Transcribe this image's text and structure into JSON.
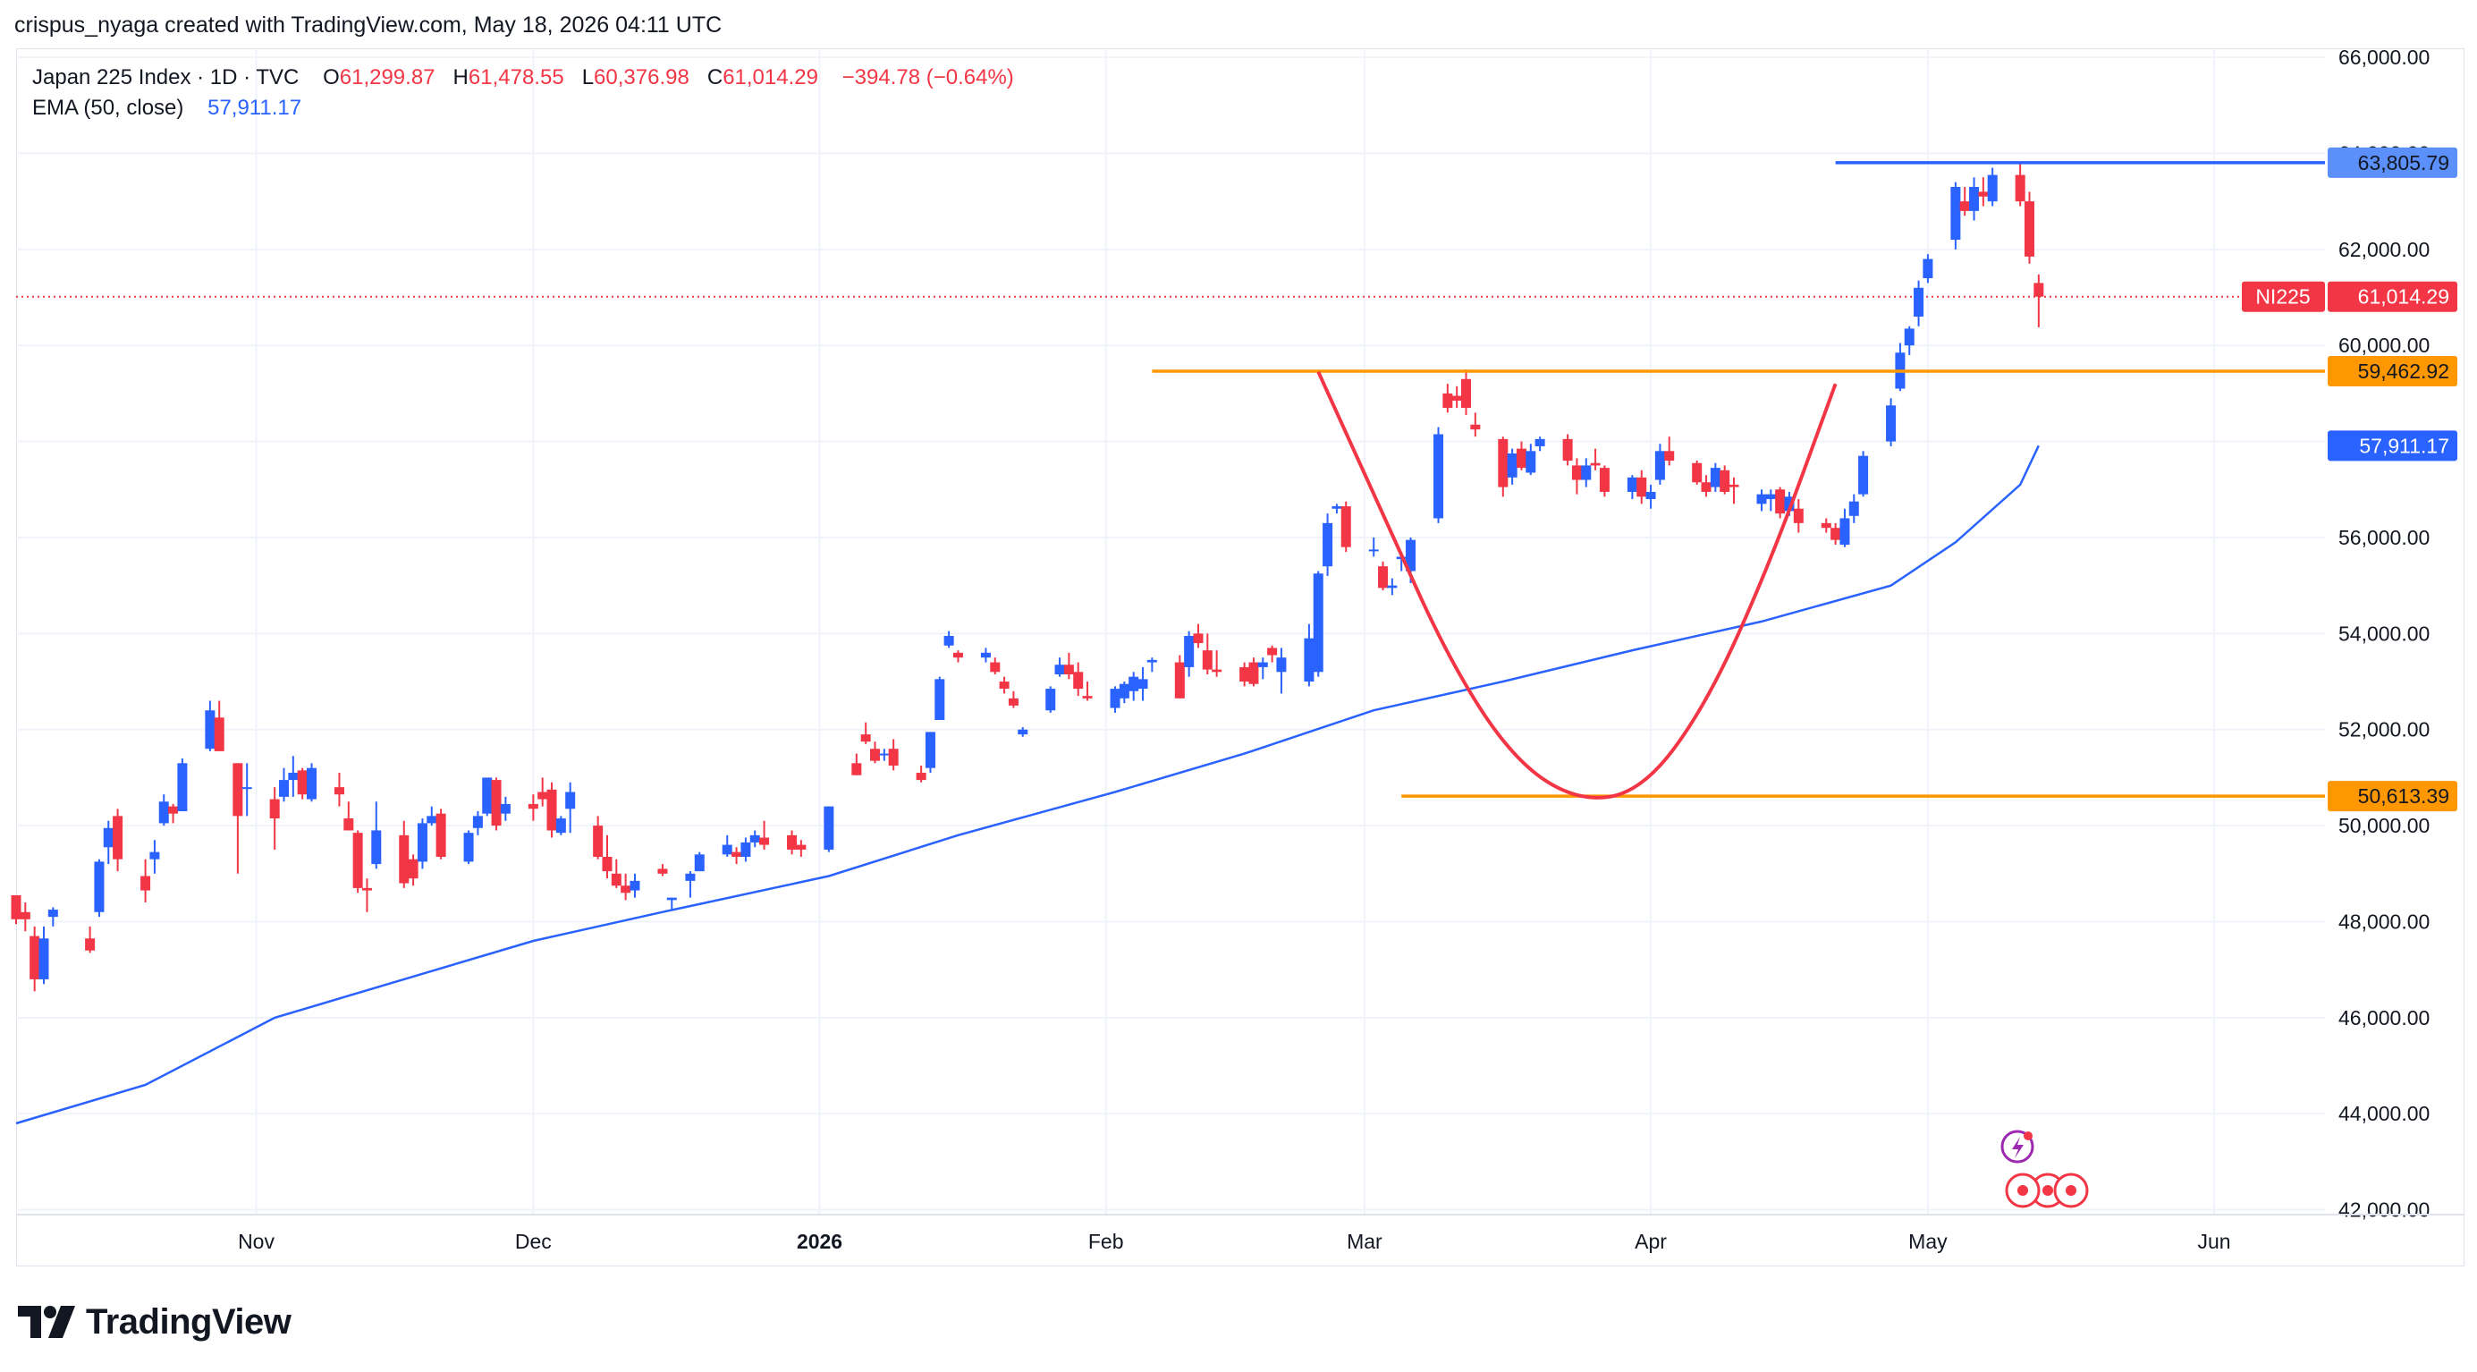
{
  "credit": "crispus_nyaga created with TradingView.com, May 18, 2026 04:11 UTC",
  "legend": {
    "symbol": "Japan 225 Index · 1D · TVC",
    "o_label": "O",
    "o_value": "61,299.87",
    "h_label": "H",
    "h_value": "61,478.55",
    "l_label": "L",
    "l_value": "60,376.98",
    "c_label": "C",
    "c_value": "61,014.29",
    "change": "−394.78 (−0.64%)",
    "ema_label": "EMA (50, close)",
    "ema_value": "57,911.17"
  },
  "price_tags": {
    "resistance_high": "63,805.79",
    "symbol_tag": "NI225",
    "last_price": "61,014.29",
    "resistance_mid": "59,462.92",
    "ema": "57,911.17",
    "support": "50,613.39"
  },
  "brand": "TradingView",
  "colors": {
    "up": "#2962ff",
    "down": "#f23645",
    "ema": "#2962ff",
    "level_orange": "#ff9800",
    "level_blue": "#2962ff",
    "cup_curve": "#f23645",
    "grid": "#f0f3fa",
    "last_price_tag": "#f23645",
    "ema_tag": "#2962ff",
    "level_tag_orange": "#ff9800",
    "level_tag_blue": "#5b8ff9"
  },
  "chart_data": {
    "type": "candlestick",
    "title": "Japan 225 Index · 1D · TVC",
    "y_ticks": [
      42000,
      44000,
      46000,
      48000,
      50000,
      52000,
      54000,
      56000,
      58000,
      60000,
      62000,
      64000,
      66000
    ],
    "y_tick_labels": [
      "42,000.00",
      "44,000.00",
      "46,000.00",
      "48,000.00",
      "50,000.00",
      "52,000.00",
      "54,000.00",
      "56,000.00",
      "58,000.00",
      "60,000.00",
      "62,000.00",
      "64,000.00",
      "66,000.00"
    ],
    "ylim": [
      41900,
      66150
    ],
    "x_range": [
      "2025-10-06",
      "2026-06-13"
    ],
    "x_ticks": [
      {
        "date": "2025-11-01",
        "label": "Nov",
        "bold": false
      },
      {
        "date": "2025-12-01",
        "label": "Dec",
        "bold": false
      },
      {
        "date": "2026-01-01",
        "label": "2026",
        "bold": true
      },
      {
        "date": "2026-02-01",
        "label": "Feb",
        "bold": false
      },
      {
        "date": "2026-03-01",
        "label": "Mar",
        "bold": false
      },
      {
        "date": "2026-04-01",
        "label": "Apr",
        "bold": false
      },
      {
        "date": "2026-05-01",
        "label": "May",
        "bold": false
      },
      {
        "date": "2026-06-01",
        "label": "Jun",
        "bold": false
      }
    ],
    "candles": [
      [
        "2025-10-06",
        48550,
        48550,
        47950,
        48050
      ],
      [
        "2025-10-07",
        48200,
        48400,
        47800,
        48050
      ],
      [
        "2025-10-08",
        47700,
        47900,
        46550,
        46800
      ],
      [
        "2025-10-09",
        46800,
        47900,
        46700,
        47650
      ],
      [
        "2025-10-10",
        48100,
        48300,
        47900,
        48250
      ],
      [
        "2025-10-14",
        47650,
        47900,
        47350,
        47400
      ],
      [
        "2025-10-15",
        48200,
        49300,
        48100,
        49250
      ],
      [
        "2025-10-16",
        49550,
        50100,
        49200,
        49950
      ],
      [
        "2025-10-17",
        50200,
        50350,
        49050,
        49300
      ],
      [
        "2025-10-20",
        48950,
        49300,
        48400,
        48650
      ],
      [
        "2025-10-21",
        49300,
        49700,
        49000,
        49450
      ],
      [
        "2025-10-22",
        50050,
        50650,
        50000,
        50500
      ],
      [
        "2025-10-23",
        50400,
        50450,
        50050,
        50250
      ],
      [
        "2025-10-24",
        50300,
        51400,
        50300,
        51300
      ],
      [
        "2025-10-27",
        51600,
        52600,
        51550,
        52400
      ],
      [
        "2025-10-28",
        52250,
        52600,
        51550,
        51550
      ],
      [
        "2025-10-30",
        51300,
        51300,
        49000,
        50200
      ],
      [
        "2025-10-31",
        50800,
        51300,
        50200,
        50800
      ],
      [
        "2025-11-03",
        50550,
        50800,
        49500,
        50150
      ],
      [
        "2025-11-04",
        50600,
        51200,
        50500,
        50950
      ],
      [
        "2025-11-05",
        50950,
        51450,
        50600,
        51100
      ],
      [
        "2025-11-06",
        51150,
        51200,
        50550,
        50650
      ],
      [
        "2025-11-07",
        50550,
        51300,
        50500,
        51200
      ],
      [
        "2025-11-10",
        50800,
        51100,
        50400,
        50650
      ],
      [
        "2025-11-11",
        50150,
        50500,
        49900,
        49900
      ],
      [
        "2025-11-12",
        49850,
        49900,
        48600,
        48700
      ],
      [
        "2025-11-13",
        48700,
        48900,
        48200,
        48650
      ],
      [
        "2025-11-14",
        49200,
        50500,
        49100,
        49900
      ],
      [
        "2025-11-17",
        49800,
        50100,
        48700,
        48800
      ],
      [
        "2025-11-18",
        49300,
        49400,
        48750,
        48900
      ],
      [
        "2025-11-19",
        49250,
        50150,
        49100,
        50050
      ],
      [
        "2025-11-20",
        50050,
        50400,
        50000,
        50200
      ],
      [
        "2025-11-21",
        50250,
        50350,
        49300,
        49350
      ],
      [
        "2025-11-24",
        49250,
        49900,
        49200,
        49850
      ],
      [
        "2025-11-25",
        49950,
        50300,
        49800,
        50200
      ],
      [
        "2025-11-26",
        50250,
        51000,
        50200,
        51000
      ],
      [
        "2025-11-27",
        50950,
        51000,
        49900,
        50000
      ],
      [
        "2025-11-28",
        50250,
        50600,
        50100,
        50450
      ],
      [
        "2025-12-01",
        50450,
        50650,
        50100,
        50350
      ],
      [
        "2025-12-02",
        50700,
        51000,
        50400,
        50550
      ],
      [
        "2025-12-03",
        50750,
        50900,
        49750,
        49900
      ],
      [
        "2025-12-04",
        49850,
        50200,
        49800,
        50150
      ],
      [
        "2025-12-05",
        50350,
        50900,
        49850,
        50700
      ],
      [
        "2025-12-08",
        50000,
        50200,
        49300,
        49350
      ],
      [
        "2025-12-09",
        49350,
        49800,
        48900,
        49050
      ],
      [
        "2025-12-10",
        49000,
        49300,
        48700,
        48750
      ],
      [
        "2025-12-11",
        48750,
        49000,
        48450,
        48600
      ],
      [
        "2025-12-12",
        48650,
        49000,
        48500,
        48850
      ],
      [
        "2025-12-15",
        49100,
        49200,
        48950,
        49000
      ],
      [
        "2025-12-16",
        48450,
        48500,
        48250,
        48500
      ],
      [
        "2025-12-18",
        48850,
        49050,
        48500,
        49000
      ],
      [
        "2025-12-19",
        49050,
        49450,
        49050,
        49400
      ],
      [
        "2025-12-22",
        49400,
        49800,
        49350,
        49600
      ],
      [
        "2025-12-23",
        49450,
        49550,
        49200,
        49350
      ],
      [
        "2025-12-24",
        49350,
        49750,
        49250,
        49650
      ],
      [
        "2025-12-25",
        49650,
        49900,
        49550,
        49800
      ],
      [
        "2025-12-26",
        49750,
        50100,
        49500,
        49600
      ],
      [
        "2025-12-29",
        49800,
        49900,
        49400,
        49500
      ],
      [
        "2025-12-30",
        49600,
        49700,
        49350,
        49500
      ],
      [
        "2026-01-02",
        49500,
        50400,
        49450,
        50400
      ],
      [
        "2026-01-05",
        51300,
        51500,
        51050,
        51050
      ],
      [
        "2026-01-06",
        51900,
        52150,
        51700,
        51750
      ],
      [
        "2026-01-07",
        51600,
        51750,
        51300,
        51350
      ],
      [
        "2026-01-08",
        51500,
        51600,
        51350,
        51500
      ],
      [
        "2026-01-09",
        51600,
        51800,
        51150,
        51250
      ],
      [
        "2026-01-12",
        51100,
        51250,
        50900,
        50950
      ],
      [
        "2026-01-13",
        51200,
        51950,
        51100,
        51950
      ],
      [
        "2026-01-14",
        52200,
        53100,
        52200,
        53050
      ],
      [
        "2026-01-15",
        53750,
        54050,
        53700,
        53950
      ],
      [
        "2026-01-16",
        53600,
        53650,
        53400,
        53500
      ],
      [
        "2026-01-19",
        53500,
        53700,
        53400,
        53600
      ],
      [
        "2026-01-20",
        53400,
        53500,
        53150,
        53200
      ],
      [
        "2026-01-21",
        53000,
        53100,
        52750,
        52850
      ],
      [
        "2026-01-22",
        52650,
        52800,
        52450,
        52500
      ],
      [
        "2026-01-23",
        51900,
        52050,
        51850,
        52000
      ],
      [
        "2026-01-26",
        52400,
        52900,
        52350,
        52850
      ],
      [
        "2026-01-27",
        53150,
        53500,
        53100,
        53350
      ],
      [
        "2026-01-28",
        53350,
        53600,
        53050,
        53150
      ],
      [
        "2026-01-29",
        53200,
        53400,
        52700,
        52850
      ],
      [
        "2026-01-30",
        52700,
        53000,
        52600,
        52650
      ],
      [
        "2026-02-02",
        52450,
        52900,
        52350,
        52850
      ],
      [
        "2026-02-03",
        52650,
        53000,
        52550,
        52950
      ],
      [
        "2026-02-04",
        52800,
        53200,
        52600,
        53100
      ],
      [
        "2026-02-05",
        52850,
        53300,
        52600,
        53050
      ],
      [
        "2026-02-06",
        53400,
        53500,
        53200,
        53450
      ],
      [
        "2026-02-09",
        53400,
        53550,
        52650,
        52650
      ],
      [
        "2026-02-10",
        53300,
        54050,
        53100,
        53950
      ],
      [
        "2026-02-11",
        54000,
        54200,
        53700,
        53800
      ],
      [
        "2026-02-12",
        53650,
        54000,
        53150,
        53250
      ],
      [
        "2026-02-13",
        53250,
        53650,
        53100,
        53200
      ],
      [
        "2026-02-16",
        53300,
        53400,
        52900,
        53000
      ],
      [
        "2026-02-17",
        53400,
        53500,
        52900,
        52950
      ],
      [
        "2026-02-18",
        53300,
        53500,
        53050,
        53400
      ],
      [
        "2026-02-19",
        53700,
        53750,
        53400,
        53550
      ],
      [
        "2026-02-20",
        53200,
        53700,
        52750,
        53500
      ],
      [
        "2026-02-23",
        53000,
        54200,
        52900,
        53900
      ],
      [
        "2026-02-24",
        53200,
        55300,
        53100,
        55250
      ],
      [
        "2026-02-25",
        55400,
        56500,
        55200,
        56300
      ],
      [
        "2026-02-26",
        56600,
        56700,
        56500,
        56650
      ],
      [
        "2026-02-27",
        56650,
        56750,
        55700,
        55800
      ],
      [
        "2026-03-02",
        55750,
        56000,
        55600,
        55750
      ],
      [
        "2026-03-03",
        55400,
        55500,
        54900,
        54950
      ],
      [
        "2026-03-04",
        54950,
        55150,
        54800,
        55000
      ],
      [
        "2026-03-05",
        55550,
        55700,
        55300,
        55600
      ],
      [
        "2026-03-06",
        55300,
        56000,
        55050,
        55950
      ],
      [
        "2026-03-09",
        56400,
        58300,
        56300,
        58150
      ],
      [
        "2026-03-10",
        59000,
        59200,
        58600,
        58700
      ],
      [
        "2026-03-11",
        58950,
        59150,
        58700,
        58850
      ],
      [
        "2026-03-12",
        59300,
        59500,
        58550,
        58700
      ],
      [
        "2026-03-13",
        58350,
        58600,
        58100,
        58250
      ],
      [
        "2026-03-16",
        58050,
        58100,
        56850,
        57050
      ],
      [
        "2026-03-17",
        57250,
        57850,
        57100,
        57750
      ],
      [
        "2026-03-18",
        57850,
        58000,
        57400,
        57450
      ],
      [
        "2026-03-19",
        57350,
        57950,
        57300,
        57800
      ],
      [
        "2026-03-20",
        57900,
        58100,
        57800,
        58050
      ],
      [
        "2026-03-23",
        58050,
        58150,
        57500,
        57600
      ],
      [
        "2026-03-24",
        57500,
        57650,
        56900,
        57200
      ],
      [
        "2026-03-25",
        57200,
        57650,
        57050,
        57500
      ],
      [
        "2026-03-26",
        57550,
        57850,
        57400,
        57500
      ],
      [
        "2026-03-27",
        57450,
        57500,
        56850,
        56950
      ],
      [
        "2026-03-30",
        56950,
        57300,
        56800,
        57250
      ],
      [
        "2026-03-31",
        57250,
        57400,
        56700,
        56850
      ],
      [
        "2026-04-01",
        56800,
        57100,
        56600,
        56950
      ],
      [
        "2026-04-02",
        57200,
        57950,
        57100,
        57800
      ],
      [
        "2026-04-03",
        57800,
        58100,
        57500,
        57600
      ],
      [
        "2026-04-06",
        57550,
        57600,
        57100,
        57150
      ],
      [
        "2026-04-07",
        57150,
        57300,
        56850,
        56950
      ],
      [
        "2026-04-08",
        57050,
        57550,
        56950,
        57450
      ],
      [
        "2026-04-09",
        57400,
        57500,
        56900,
        56950
      ],
      [
        "2026-04-10",
        57100,
        57250,
        56700,
        57050
      ],
      [
        "2026-04-13",
        56700,
        57000,
        56550,
        56900
      ],
      [
        "2026-04-14",
        56800,
        57000,
        56550,
        56900
      ],
      [
        "2026-04-15",
        57000,
        57050,
        56400,
        56500
      ],
      [
        "2026-04-16",
        56550,
        56950,
        56450,
        56850
      ],
      [
        "2026-04-17",
        56600,
        56800,
        56100,
        56300
      ],
      [
        "2026-04-20",
        56300,
        56400,
        56100,
        56200
      ],
      [
        "2026-04-21",
        56200,
        56300,
        55850,
        55950
      ],
      [
        "2026-04-22",
        55850,
        56600,
        55800,
        56400
      ],
      [
        "2026-04-23",
        56450,
        56900,
        56300,
        56750
      ],
      [
        "2026-04-24",
        56900,
        57800,
        56850,
        57700
      ],
      [
        "2026-04-27",
        58000,
        58900,
        57900,
        58750
      ],
      [
        "2026-04-28",
        59100,
        60050,
        59050,
        59850
      ],
      [
        "2026-04-29",
        60000,
        60400,
        59800,
        60350
      ],
      [
        "2026-04-30",
        60600,
        61350,
        60400,
        61200
      ],
      [
        "2026-05-01",
        61400,
        61900,
        61300,
        61800
      ],
      [
        "2026-05-04",
        62200,
        63400,
        62000,
        63300
      ],
      [
        "2026-05-05",
        63000,
        63300,
        62700,
        62800
      ],
      [
        "2026-05-06",
        62800,
        63500,
        62600,
        63300
      ],
      [
        "2026-05-07",
        63200,
        63500,
        62900,
        63100
      ],
      [
        "2026-05-08",
        63000,
        63700,
        62900,
        63550
      ],
      [
        "2026-05-11",
        63550,
        63805,
        62900,
        63000
      ],
      [
        "2026-05-12",
        63000,
        63200,
        61700,
        61850
      ],
      [
        "2026-05-13",
        61299.87,
        61478.55,
        60376.98,
        61014.29
      ]
    ],
    "ema_series_name": "EMA (50, close)",
    "ema_points": [
      [
        "2025-10-06",
        43800
      ],
      [
        "2025-10-20",
        44600
      ],
      [
        "2025-11-03",
        46000
      ],
      [
        "2025-11-17",
        46800
      ],
      [
        "2025-12-01",
        47600
      ],
      [
        "2025-12-15",
        48200
      ],
      [
        "2026-01-02",
        48950
      ],
      [
        "2026-01-16",
        49800
      ],
      [
        "2026-02-02",
        50700
      ],
      [
        "2026-02-16",
        51500
      ],
      [
        "2026-03-02",
        52400
      ],
      [
        "2026-03-16",
        53000
      ],
      [
        "2026-03-30",
        53650
      ],
      [
        "2026-04-13",
        54250
      ],
      [
        "2026-04-27",
        55000
      ],
      [
        "2026-05-04",
        55900
      ],
      [
        "2026-05-11",
        57100
      ],
      [
        "2026-05-13",
        57911.17
      ]
    ],
    "horizontal_levels": [
      {
        "price": 63805.79,
        "start": "2026-04-21",
        "color": "#2962ff"
      },
      {
        "price": 59462.92,
        "start": "2026-02-06",
        "color": "#ff9800"
      },
      {
        "price": 50613.39,
        "start": "2026-03-05",
        "color": "#ff9800"
      }
    ],
    "cup_curve": [
      [
        "2026-02-24",
        59450
      ],
      [
        "2026-03-03",
        56500
      ],
      [
        "2026-03-10",
        53500
      ],
      [
        "2026-03-17",
        51400
      ],
      [
        "2026-03-24",
        50500
      ],
      [
        "2026-03-31",
        50700
      ],
      [
        "2026-04-07",
        52500
      ],
      [
        "2026-04-14",
        55500
      ],
      [
        "2026-04-21",
        59200
      ]
    ],
    "last_price": 61014.29
  }
}
